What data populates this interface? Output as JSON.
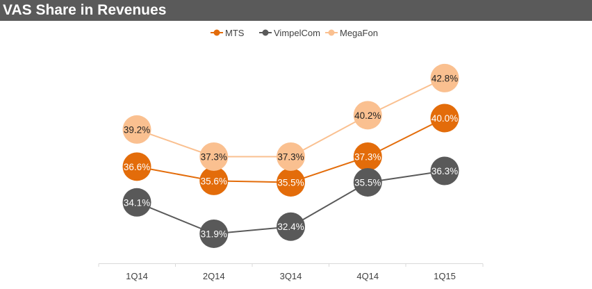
{
  "chart_data": {
    "type": "line",
    "title": "VAS Share in Revenues",
    "categories": [
      "1Q14",
      "2Q14",
      "3Q14",
      "4Q14",
      "1Q15"
    ],
    "series": [
      {
        "name": "MTS",
        "values": [
          36.6,
          35.6,
          35.5,
          37.3,
          40.0
        ],
        "labels": [
          "36.6%",
          "35.6%",
          "35.5%",
          "37.3%",
          "40.0%"
        ],
        "color": "#e36c0a"
      },
      {
        "name": "VimpelCom",
        "values": [
          34.1,
          31.9,
          32.4,
          35.5,
          36.3
        ],
        "labels": [
          "34.1%",
          "31.9%",
          "32.4%",
          "35.5%",
          "36.3%"
        ],
        "color": "#595959"
      },
      {
        "name": "MegaFon",
        "values": [
          39.2,
          37.3,
          37.3,
          40.2,
          42.8
        ],
        "labels": [
          "39.2%",
          "37.3%",
          "37.3%",
          "40.2%",
          "42.8%"
        ],
        "color": "#fac090"
      }
    ],
    "ylim": [
      31.0,
      43.5
    ],
    "legend": "top-center",
    "grid": false
  }
}
